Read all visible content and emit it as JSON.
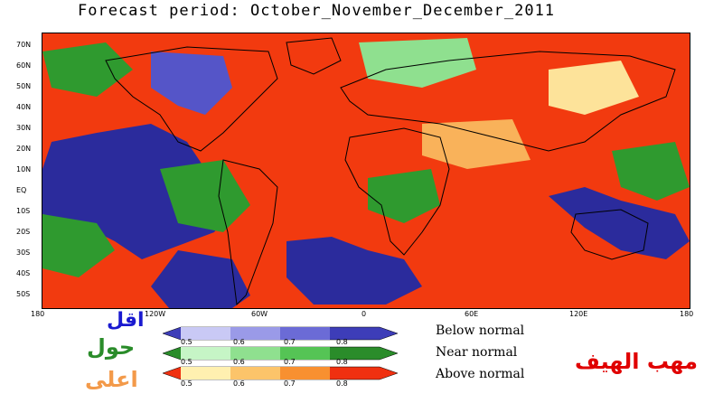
{
  "title": "Forecast period:  October_November_December_2011",
  "lat_labels": [
    "70N",
    "60N",
    "50N",
    "40N",
    "30N",
    "20N",
    "10N",
    "EQ",
    "10S",
    "20S",
    "30S",
    "40S",
    "50S"
  ],
  "lon_labels": [
    "180",
    "120W",
    "60W",
    "0",
    "60E",
    "120E",
    "180"
  ],
  "legend": {
    "rows": [
      {
        "label": "Below normal",
        "color": "#3d3db8",
        "light": "#c9c9f5",
        "ticks": [
          "0.5",
          "0.6",
          "0.7",
          "0.8"
        ]
      },
      {
        "label": "Near normal",
        "color": "#2a8c2a",
        "light": "#c6f5c6",
        "ticks": [
          "0.5",
          "0.6",
          "0.7",
          "0.8"
        ]
      },
      {
        "label": "Above normal",
        "color": "#f03010",
        "light": "#fff0b0",
        "ticks": [
          "0.5",
          "0.6",
          "0.7",
          "0.8"
        ]
      }
    ]
  },
  "arabic": {
    "below": "اقل",
    "near": "حول",
    "above": "اعلى",
    "credit": "مهب الهيف"
  },
  "colors": {
    "ocean_below": "#2b2b9c",
    "above": "#f23a0f",
    "near": "#2f9a2f",
    "neutral": "#f5f5f5"
  }
}
